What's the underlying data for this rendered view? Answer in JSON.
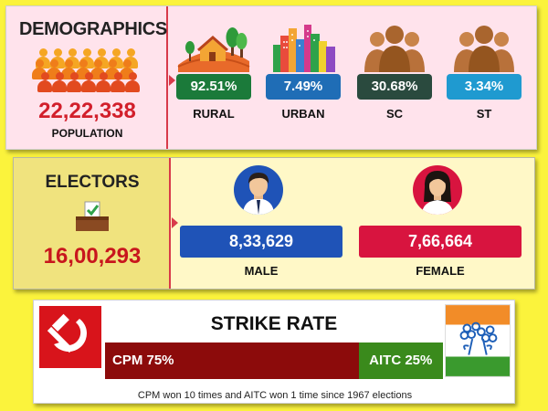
{
  "demographics": {
    "title": "DEMOGRAPHICS",
    "population_value": "22,22,338",
    "population_label": "POPULATION",
    "stats": [
      {
        "value": "92.51%",
        "label": "RURAL",
        "color": "#1b7a3a",
        "icon": "rural-landscape-icon"
      },
      {
        "value": "7.49%",
        "label": "URBAN",
        "color": "#1f6db6",
        "icon": "city-skyline-icon"
      },
      {
        "value": "30.68%",
        "label": "SC",
        "color": "#2a4a3e",
        "icon": "group-people-icon"
      },
      {
        "value": "3.34%",
        "label": "ST",
        "color": "#1f9ad0",
        "icon": "group-people-icon"
      }
    ]
  },
  "electors": {
    "title": "ELECTORS",
    "total": "16,00,293",
    "male_value": "8,33,629",
    "male_label": "MALE",
    "female_value": "7,66,664",
    "female_label": "FEMALE",
    "male_color": "#1f53b7",
    "female_color": "#d8143f"
  },
  "strike": {
    "title": "STRIKE RATE",
    "cpm_label": "CPM 75%",
    "cpm_share": 75,
    "aitc_label": "AITC 25%",
    "aitc_share": 25,
    "note": "CPM won 10 times and AITC won 1 time since 1967 elections",
    "cpm_logo_icon": "hammer-sickle-icon",
    "aitc_logo_icon": "twin-flowers-logo-icon"
  }
}
